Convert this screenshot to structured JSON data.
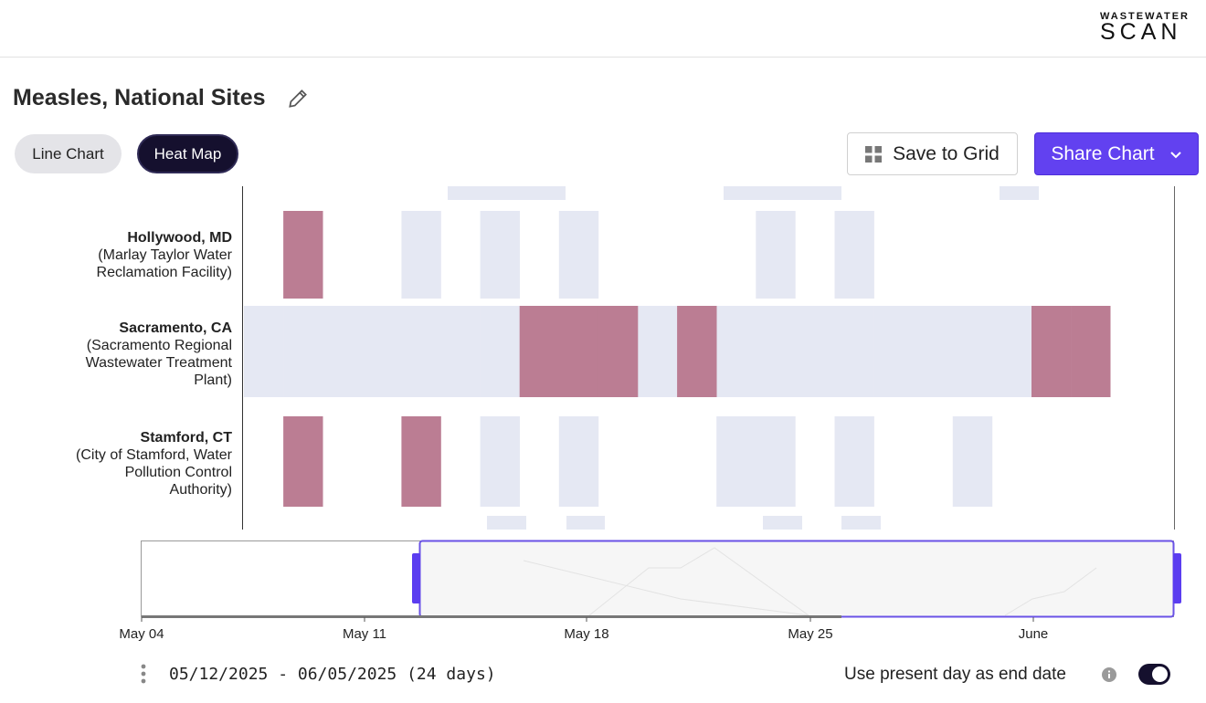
{
  "brand": {
    "top": "WASTEWATER",
    "bottom": "SCAN"
  },
  "page_title": "Measles, National Sites",
  "view_toggle": {
    "line_chart": "Line Chart",
    "heat_map": "Heat Map",
    "selected": "heat_map"
  },
  "actions": {
    "save_to_grid": "Save to Grid",
    "share_chart": "Share Chart"
  },
  "colors": {
    "detected": "#bb7d93",
    "not_detected": "#e5e8f3",
    "accent": "#6241f0",
    "dark": "#15102e"
  },
  "sites": [
    {
      "name": "Hollywood, MD",
      "facility_lines": [
        "(Marlay Taylor Water",
        "Reclamation Facility)"
      ]
    },
    {
      "name": "Sacramento, CA",
      "facility_lines": [
        "(Sacramento Regional",
        "Wastewater Treatment",
        "Plant)"
      ]
    },
    {
      "name": "Stamford, CT",
      "facility_lines": [
        "(City of Stamford, Water",
        "Pollution Control",
        "Authority)"
      ]
    }
  ],
  "chart_data": {
    "type": "heatmap",
    "x_start": "2025-05-12",
    "x_end": "2025-06-05",
    "rows": [
      {
        "site": "Hollywood, MD",
        "detected": [
          "2025-05-13"
        ],
        "not_detected": [
          "2025-05-16",
          "2025-05-18",
          "2025-05-20",
          "2025-05-25",
          "2025-05-27"
        ]
      },
      {
        "site": "Sacramento, CA",
        "detected": [
          "2025-05-19",
          "2025-05-20",
          "2025-05-21",
          "2025-05-23",
          "2025-06-01",
          "2025-06-02"
        ],
        "not_detected": [
          "2025-05-12",
          "2025-05-13",
          "2025-05-14",
          "2025-05-15",
          "2025-05-16",
          "2025-05-17",
          "2025-05-18",
          "2025-05-22",
          "2025-05-24",
          "2025-05-25",
          "2025-05-26",
          "2025-05-27",
          "2025-05-28",
          "2025-05-29",
          "2025-05-30",
          "2025-05-31"
        ]
      },
      {
        "site": "Stamford, CT",
        "detected": [
          "2025-05-13",
          "2025-05-16"
        ],
        "not_detected": [
          "2025-05-18",
          "2025-05-20",
          "2025-05-24",
          "2025-05-25",
          "2025-05-27",
          "2025-05-30"
        ]
      }
    ],
    "brush_axis_ticks": [
      "May 04",
      "May 11",
      "May 18",
      "May 25",
      "June"
    ]
  },
  "date_range_text": "05/12/2025 - 06/05/2025 (24 days)",
  "present_day_label": "Use present day as end date",
  "present_day_enabled": true
}
